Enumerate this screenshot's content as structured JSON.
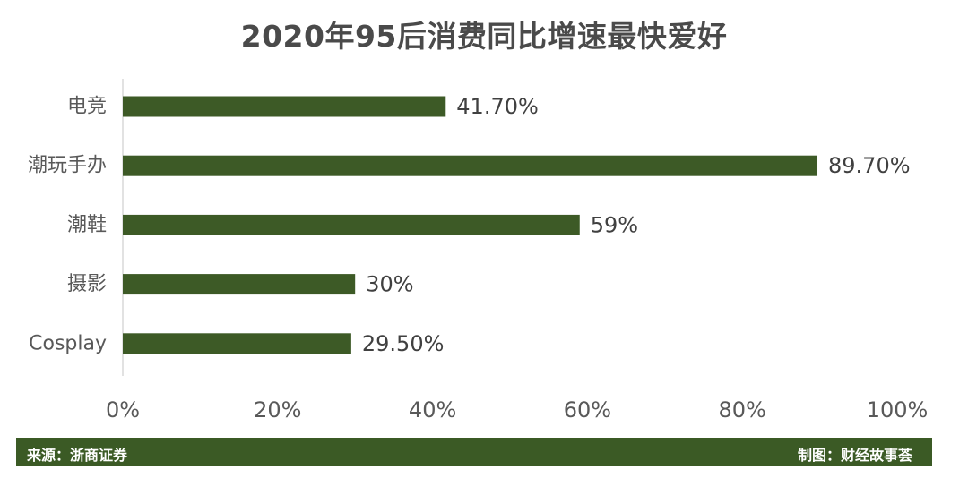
{
  "chart_data": {
    "type": "bar",
    "orientation": "horizontal",
    "title": "2020年95后消费同比增速最快爱好",
    "categories": [
      "电竞",
      "潮玩手办",
      "潮鞋",
      "摄影",
      "Cosplay"
    ],
    "values": [
      41.7,
      89.7,
      59,
      30,
      29.5
    ],
    "data_labels": [
      "41.70%",
      "89.70%",
      "59%",
      "30%",
      "29.50%"
    ],
    "xlim": [
      0,
      100
    ],
    "xticks": [
      0,
      20,
      40,
      60,
      80,
      100
    ],
    "xtick_labels": [
      "0%",
      "20%",
      "40%",
      "60%",
      "80%",
      "100%"
    ],
    "xlabel": "",
    "ylabel": "",
    "grid": false,
    "legend": "none",
    "bar_color": "#3d5a26"
  },
  "footer": {
    "source": "来源：浙商证券",
    "credit": "制图：财经故事荟",
    "background": "#3b5a25"
  }
}
